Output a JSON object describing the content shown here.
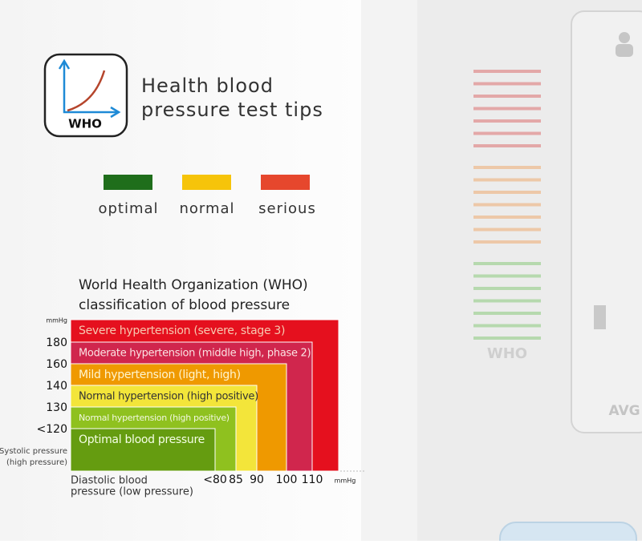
{
  "header": {
    "icon_label": "WHO",
    "title_lines": [
      "Health blood",
      "pressure test tips"
    ]
  },
  "legend": [
    "optimal",
    "normal",
    "serious"
  ],
  "classification": {
    "title_lines": [
      "World Health Organization (WHO)",
      "classification of blood pressure"
    ],
    "y_unit": "mmHg",
    "y_labels": [
      "180",
      "160",
      "140",
      "130",
      "<120"
    ],
    "y_axis_lines": [
      "Systolic pressure",
      "(high pressure)"
    ],
    "x_labels": [
      "<80",
      "85",
      "90",
      "100",
      "110"
    ],
    "x_unit": "mmHg",
    "x_axis_lines": [
      "Diastolic blood",
      "pressure (low pressure)"
    ],
    "levels": [
      "Severe hypertension (severe, stage 3)",
      "Moderate hypertension (middle high, phase 2)",
      "Mild hypertension (light, high)",
      "Normal hypertension (high positive)",
      "Normal hypertension (high positive)",
      "Optimal blood pressure"
    ]
  },
  "device": {
    "scale_label": "WHO",
    "button_label": "AVG"
  }
}
